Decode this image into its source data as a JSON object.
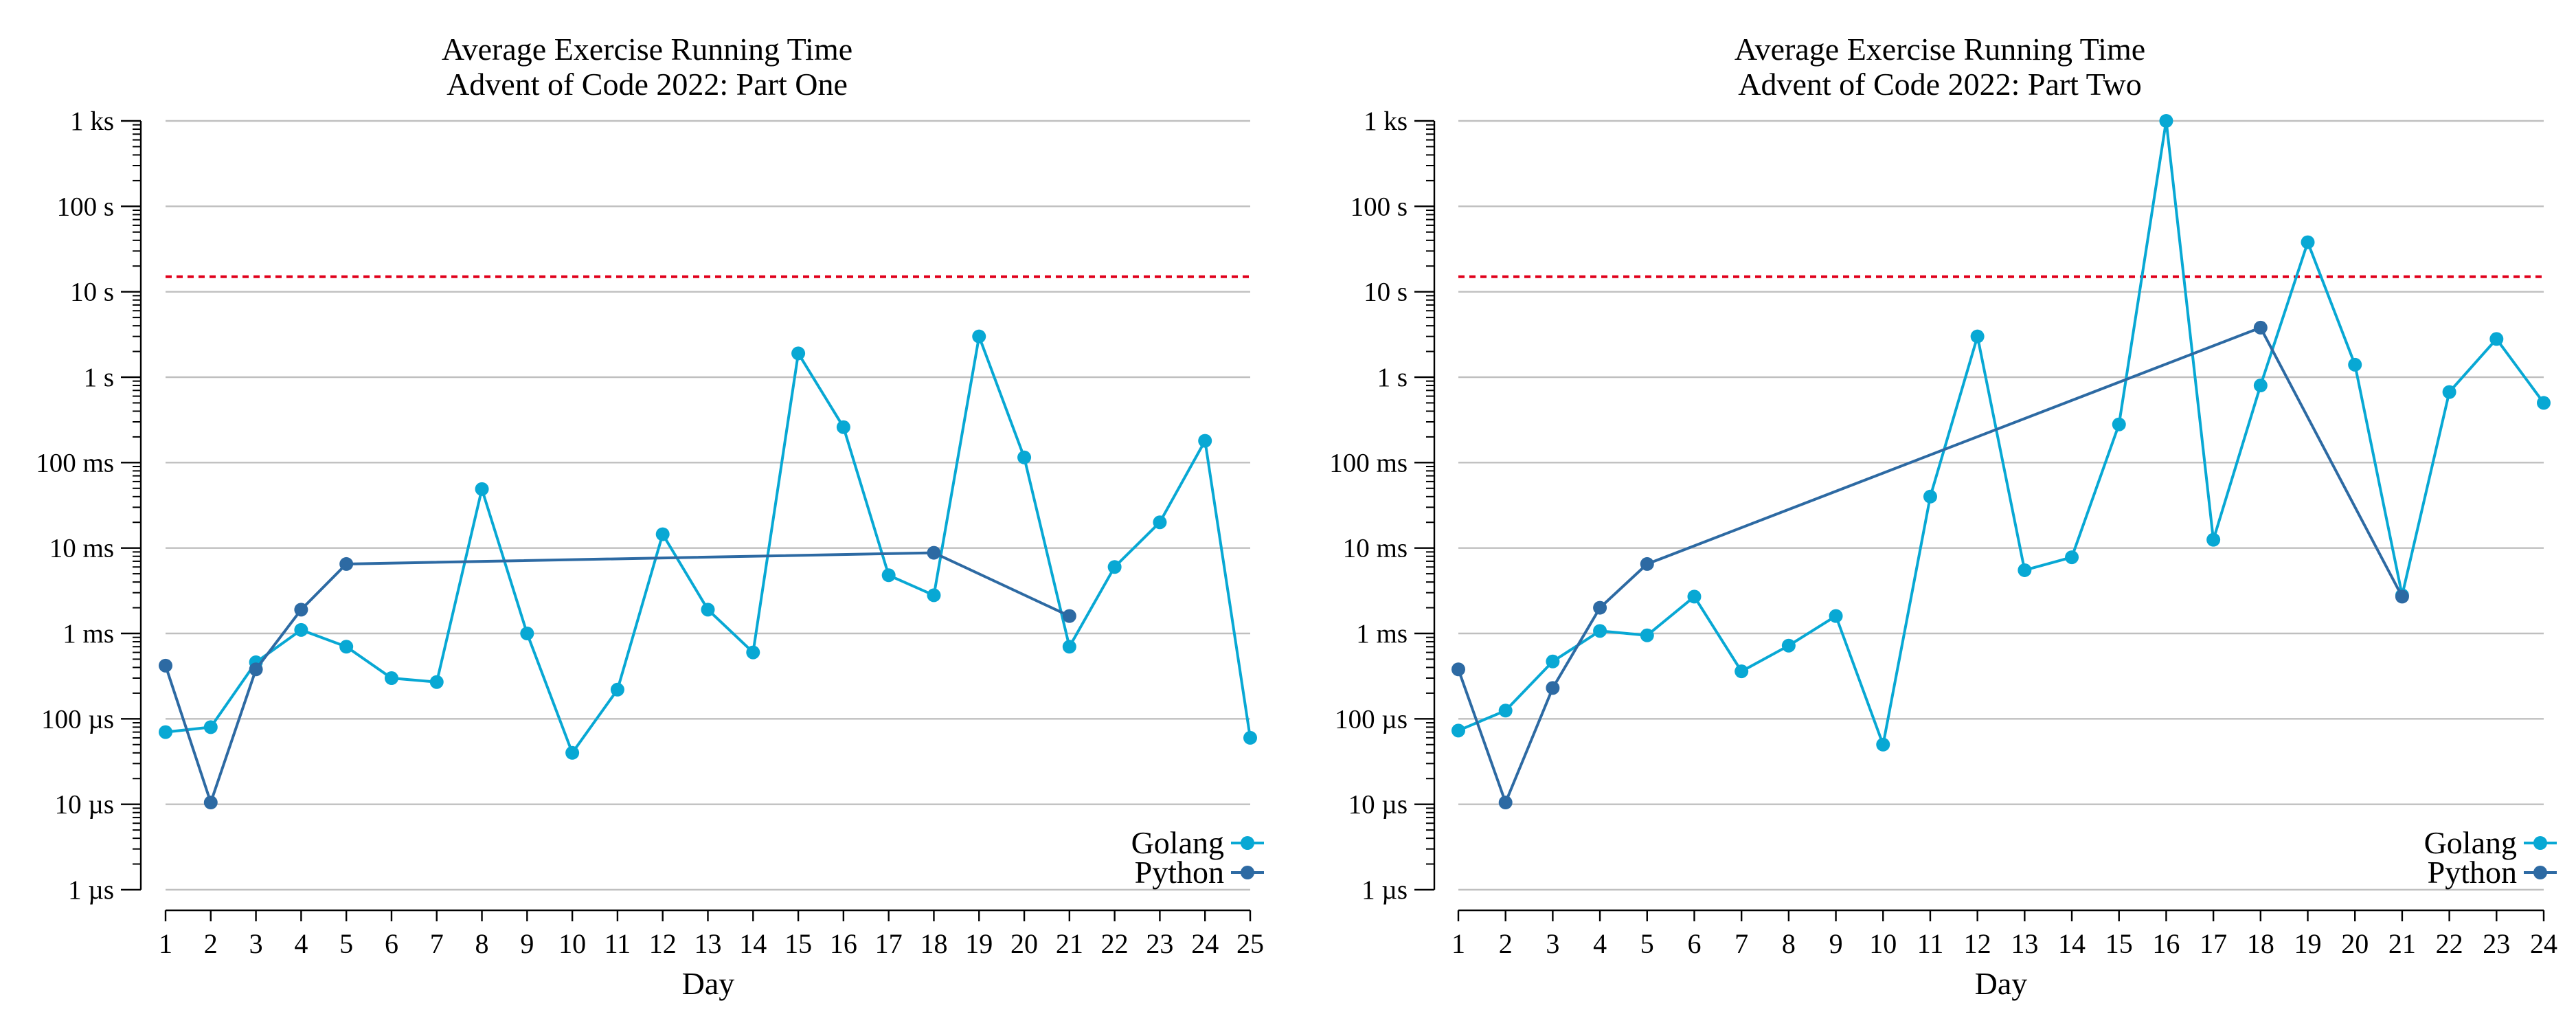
{
  "chart_data": [
    {
      "type": "line",
      "title": "Average Exercise Running Time",
      "subtitle": "Advent of Code 2022: Part One",
      "xlabel": "Day",
      "ylabel": "",
      "yscale": "log",
      "ylim_seconds": [
        1e-06,
        1000
      ],
      "ytick_values": [
        1e-06,
        1e-05,
        0.0001,
        0.001,
        0.01,
        0.1,
        1,
        10,
        100,
        1000
      ],
      "ytick_labels": [
        "1 µs",
        "10 µs",
        "100 µs",
        "1 ms",
        "10 ms",
        "100 ms",
        "1 s",
        "10 s",
        "100 s",
        "1 ks"
      ],
      "xlim": [
        1,
        25
      ],
      "xticks": [
        1,
        2,
        3,
        4,
        5,
        6,
        7,
        8,
        9,
        10,
        11,
        12,
        13,
        14,
        15,
        16,
        17,
        18,
        19,
        20,
        21,
        22,
        23,
        24,
        25
      ],
      "grid": true,
      "threshold_seconds": 15,
      "threshold_color": "#e0001b",
      "legend_position": "bottom-right",
      "series": [
        {
          "name": "Golang",
          "color": "#08a8d4",
          "x": [
            1,
            2,
            3,
            4,
            5,
            6,
            7,
            8,
            9,
            10,
            11,
            12,
            13,
            14,
            15,
            16,
            17,
            18,
            19,
            20,
            21,
            22,
            23,
            24,
            25
          ],
          "y": [
            7e-05,
            8e-05,
            0.00046,
            0.0011,
            0.0007,
            0.0003,
            0.00027,
            0.049,
            0.001,
            4e-05,
            0.00022,
            0.0145,
            0.0019,
            0.0006,
            1.9,
            0.26,
            0.0048,
            0.0028,
            3.0,
            0.115,
            0.0007,
            0.006,
            0.02,
            0.18,
            6e-05
          ]
        },
        {
          "name": "Python",
          "color": "#2d6aa3",
          "x": [
            1,
            2,
            3,
            4,
            5,
            18,
            21
          ],
          "y": [
            0.00042,
            1.05e-05,
            0.00038,
            0.0019,
            0.0065,
            0.0088,
            0.0016
          ]
        }
      ]
    },
    {
      "type": "line",
      "title": "Average Exercise Running Time",
      "subtitle": "Advent of Code 2022: Part Two",
      "xlabel": "Day",
      "ylabel": "",
      "yscale": "log",
      "ylim_seconds": [
        1e-06,
        1000
      ],
      "ytick_values": [
        1e-06,
        1e-05,
        0.0001,
        0.001,
        0.01,
        0.1,
        1,
        10,
        100,
        1000
      ],
      "ytick_labels": [
        "1 µs",
        "10 µs",
        "100 µs",
        "1 ms",
        "10 ms",
        "100 ms",
        "1 s",
        "10 s",
        "100 s",
        "1 ks"
      ],
      "xlim": [
        1,
        24
      ],
      "xticks": [
        1,
        2,
        3,
        4,
        5,
        6,
        7,
        8,
        9,
        10,
        11,
        12,
        13,
        14,
        15,
        16,
        17,
        18,
        19,
        20,
        21,
        22,
        23,
        24
      ],
      "grid": true,
      "threshold_seconds": 15,
      "threshold_color": "#e0001b",
      "legend_position": "bottom-right",
      "series": [
        {
          "name": "Golang",
          "color": "#08a8d4",
          "x": [
            1,
            2,
            3,
            4,
            5,
            6,
            7,
            8,
            9,
            10,
            11,
            12,
            13,
            14,
            15,
            16,
            17,
            18,
            19,
            20,
            21,
            22,
            23,
            24
          ],
          "y": [
            7.3e-05,
            0.000125,
            0.00047,
            0.00107,
            0.00095,
            0.0027,
            0.00036,
            0.00072,
            0.0016,
            5e-05,
            0.04,
            3.0,
            0.0055,
            0.0078,
            0.28,
            1000,
            0.0125,
            0.8,
            38,
            1.4,
            0.0028,
            0.67,
            2.8,
            0.5
          ]
        },
        {
          "name": "Python",
          "color": "#2d6aa3",
          "x": [
            1,
            2,
            3,
            4,
            5,
            18,
            21
          ],
          "y": [
            0.00038,
            1.05e-05,
            0.00023,
            0.002,
            0.0065,
            3.8,
            0.0027
          ]
        }
      ]
    }
  ]
}
